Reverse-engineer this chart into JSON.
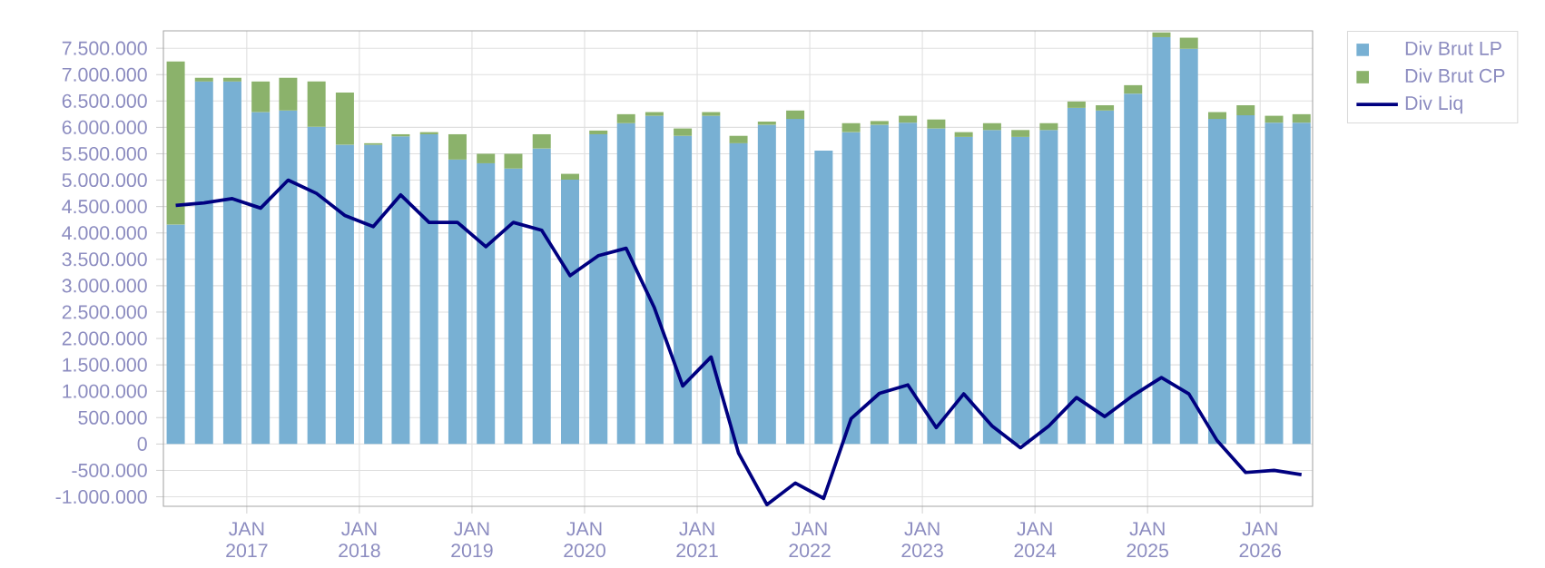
{
  "chart_data": {
    "type": "bar",
    "stacked": true,
    "grid": true,
    "legend": "right",
    "x": [
      "2016-05-15",
      "2016-08-15",
      "2016-11-15",
      "2017-02-15",
      "2017-05-15",
      "2017-08-15",
      "2017-11-15",
      "2018-02-15",
      "2018-05-15",
      "2018-08-15",
      "2018-11-15",
      "2019-02-15",
      "2019-05-15",
      "2019-08-15",
      "2019-11-15",
      "2020-02-15",
      "2020-05-15",
      "2020-08-15",
      "2020-11-15",
      "2021-02-15",
      "2021-05-15",
      "2021-08-15",
      "2021-11-15",
      "2022-02-15",
      "2022-05-15",
      "2022-08-15",
      "2022-11-15",
      "2023-02-15",
      "2023-05-15",
      "2023-08-15",
      "2023-11-15",
      "2024-02-15",
      "2024-05-15",
      "2024-08-15",
      "2024-11-15",
      "2025-02-15",
      "2025-05-15",
      "2025-08-15",
      "2025-11-15",
      "2026-02-15",
      "2026-05-15"
    ],
    "xlim": [
      "2016-04-05",
      "2026-06-20"
    ],
    "ylim": [
      -1180000,
      7830000
    ],
    "xticks": [
      {
        "value": "2017-01-01",
        "label": "JAN 2017"
      },
      {
        "value": "2018-01-01",
        "label": "JAN 2018"
      },
      {
        "value": "2019-01-01",
        "label": "JAN 2019"
      },
      {
        "value": "2020-01-01",
        "label": "JAN 2020"
      },
      {
        "value": "2021-01-01",
        "label": "JAN 2021"
      },
      {
        "value": "2022-01-01",
        "label": "JAN 2022"
      },
      {
        "value": "2023-01-01",
        "label": "JAN 2023"
      },
      {
        "value": "2024-01-01",
        "label": "JAN 2024"
      },
      {
        "value": "2025-01-01",
        "label": "JAN 2025"
      },
      {
        "value": "2026-01-01",
        "label": "JAN 2026"
      }
    ],
    "yticks": [
      {
        "value": -1000000,
        "label": "-1.000.000"
      },
      {
        "value": -500000,
        "label": "-500.000"
      },
      0,
      {
        "value": 500000,
        "label": "500.000"
      },
      {
        "value": 1000000,
        "label": "1.000.000"
      },
      {
        "value": 1500000,
        "label": "1.500.000"
      },
      {
        "value": 2000000,
        "label": "2.000.000"
      },
      {
        "value": 2500000,
        "label": "2.500.000"
      },
      {
        "value": 3000000,
        "label": "3.000.000"
      },
      {
        "value": 3500000,
        "label": "3.500.000"
      },
      {
        "value": 4000000,
        "label": "4.000.000"
      },
      {
        "value": 4500000,
        "label": "4.500.000"
      },
      {
        "value": 5000000,
        "label": "5.000.000"
      },
      {
        "value": 5500000,
        "label": "5.500.000"
      },
      {
        "value": 6000000,
        "label": "6.000.000"
      },
      {
        "value": 6500000,
        "label": "6.500.000"
      },
      {
        "value": 7000000,
        "label": "7.000.000"
      },
      {
        "value": 7500000,
        "label": "7.500.000"
      }
    ],
    "series": [
      {
        "name": "Div Brut LP",
        "color": "#78b0d3",
        "values": [
          4160000,
          6870000,
          6870000,
          6290000,
          6320000,
          6010000,
          5670000,
          5670000,
          5830000,
          5870000,
          5390000,
          5320000,
          5220000,
          5600000,
          5010000,
          5870000,
          6080000,
          6220000,
          5840000,
          6220000,
          5700000,
          6050000,
          6160000,
          5560000,
          5910000,
          6050000,
          6090000,
          5980000,
          5820000,
          5950000,
          5820000,
          5950000,
          6370000,
          6320000,
          6640000,
          7710000,
          7490000,
          6160000,
          6230000,
          6090000,
          6090000
        ]
      },
      {
        "name": "Div Brut CP",
        "color": "#8bb26b",
        "values": [
          3090000,
          70000,
          70000,
          580000,
          620000,
          860000,
          990000,
          30000,
          40000,
          40000,
          480000,
          180000,
          280000,
          270000,
          110000,
          70000,
          170000,
          70000,
          140000,
          70000,
          140000,
          60000,
          160000,
          0,
          170000,
          70000,
          130000,
          170000,
          90000,
          130000,
          130000,
          130000,
          120000,
          100000,
          160000,
          90000,
          210000,
          130000,
          190000,
          130000,
          160000
        ]
      },
      {
        "name": "Div Liq",
        "color": "#000080",
        "type": "line",
        "values": [
          4520000,
          4570000,
          4650000,
          4470000,
          5000000,
          4750000,
          4330000,
          4120000,
          4720000,
          4200000,
          4200000,
          3740000,
          4200000,
          4050000,
          3190000,
          3570000,
          3710000,
          2580000,
          1100000,
          1650000,
          -170000,
          -1150000,
          -740000,
          -1030000,
          480000,
          960000,
          1120000,
          310000,
          950000,
          340000,
          -70000,
          340000,
          880000,
          520000,
          920000,
          1260000,
          950000,
          60000,
          -540000,
          -500000,
          -580000
        ]
      }
    ]
  }
}
